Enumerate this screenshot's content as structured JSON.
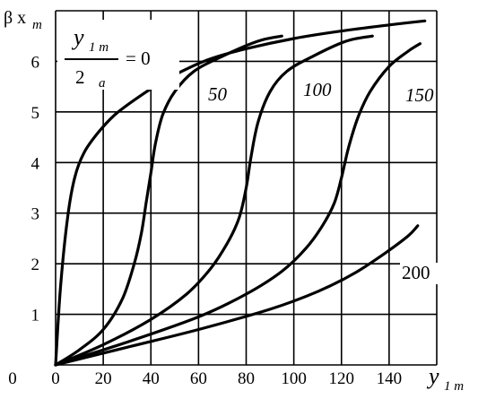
{
  "chart_data": {
    "type": "line",
    "xlabel": "y",
    "xlabel_sub": "1 m",
    "ylabel": "β x",
    "ylabel_sub": "m",
    "xlim": [
      0,
      160
    ],
    "ylim": [
      0,
      7
    ],
    "x_ticks": [
      0,
      20,
      40,
      60,
      80,
      100,
      120,
      140
    ],
    "y_ticks": [
      1,
      2,
      3,
      4,
      5,
      6
    ],
    "grid": true,
    "parameter_label": {
      "numerator": "y",
      "numerator_sub": "1 m",
      "denominator": "2",
      "denominator_sub": "a",
      "equals": "= 0"
    },
    "series": [
      {
        "name": "0",
        "x": [
          0,
          2,
          5,
          8,
          12,
          18,
          25,
          35,
          45,
          55,
          65,
          80,
          100,
          120,
          140,
          155
        ],
        "y": [
          0,
          1.5,
          2.9,
          3.7,
          4.2,
          4.6,
          4.95,
          5.3,
          5.6,
          5.85,
          6.05,
          6.25,
          6.45,
          6.6,
          6.72,
          6.8
        ]
      },
      {
        "name": "50",
        "x": [
          0,
          10,
          20,
          28,
          33,
          36,
          38,
          40,
          42,
          45,
          50,
          58,
          70,
          85,
          95
        ],
        "y": [
          0,
          0.3,
          0.7,
          1.3,
          2.0,
          2.6,
          3.2,
          3.8,
          4.4,
          4.95,
          5.4,
          5.8,
          6.1,
          6.4,
          6.5
        ]
      },
      {
        "name": "100",
        "x": [
          0,
          20,
          40,
          55,
          65,
          72,
          77,
          80,
          82,
          85,
          90,
          97,
          108,
          122,
          133
        ],
        "y": [
          0,
          0.4,
          0.9,
          1.4,
          1.9,
          2.4,
          2.9,
          3.5,
          4.1,
          4.8,
          5.4,
          5.8,
          6.1,
          6.4,
          6.5
        ]
      },
      {
        "name": "150",
        "x": [
          0,
          30,
          60,
          80,
          95,
          105,
          112,
          117,
          120,
          123,
          127,
          132,
          140,
          148,
          153
        ],
        "y": [
          0,
          0.45,
          0.95,
          1.4,
          1.85,
          2.3,
          2.75,
          3.2,
          3.7,
          4.3,
          4.9,
          5.4,
          5.9,
          6.2,
          6.35
        ]
      },
      {
        "name": "200",
        "x": [
          0,
          30,
          60,
          90,
          110,
          125,
          138,
          148,
          152
        ],
        "y": [
          0,
          0.35,
          0.7,
          1.1,
          1.45,
          1.8,
          2.2,
          2.55,
          2.75
        ]
      }
    ]
  }
}
